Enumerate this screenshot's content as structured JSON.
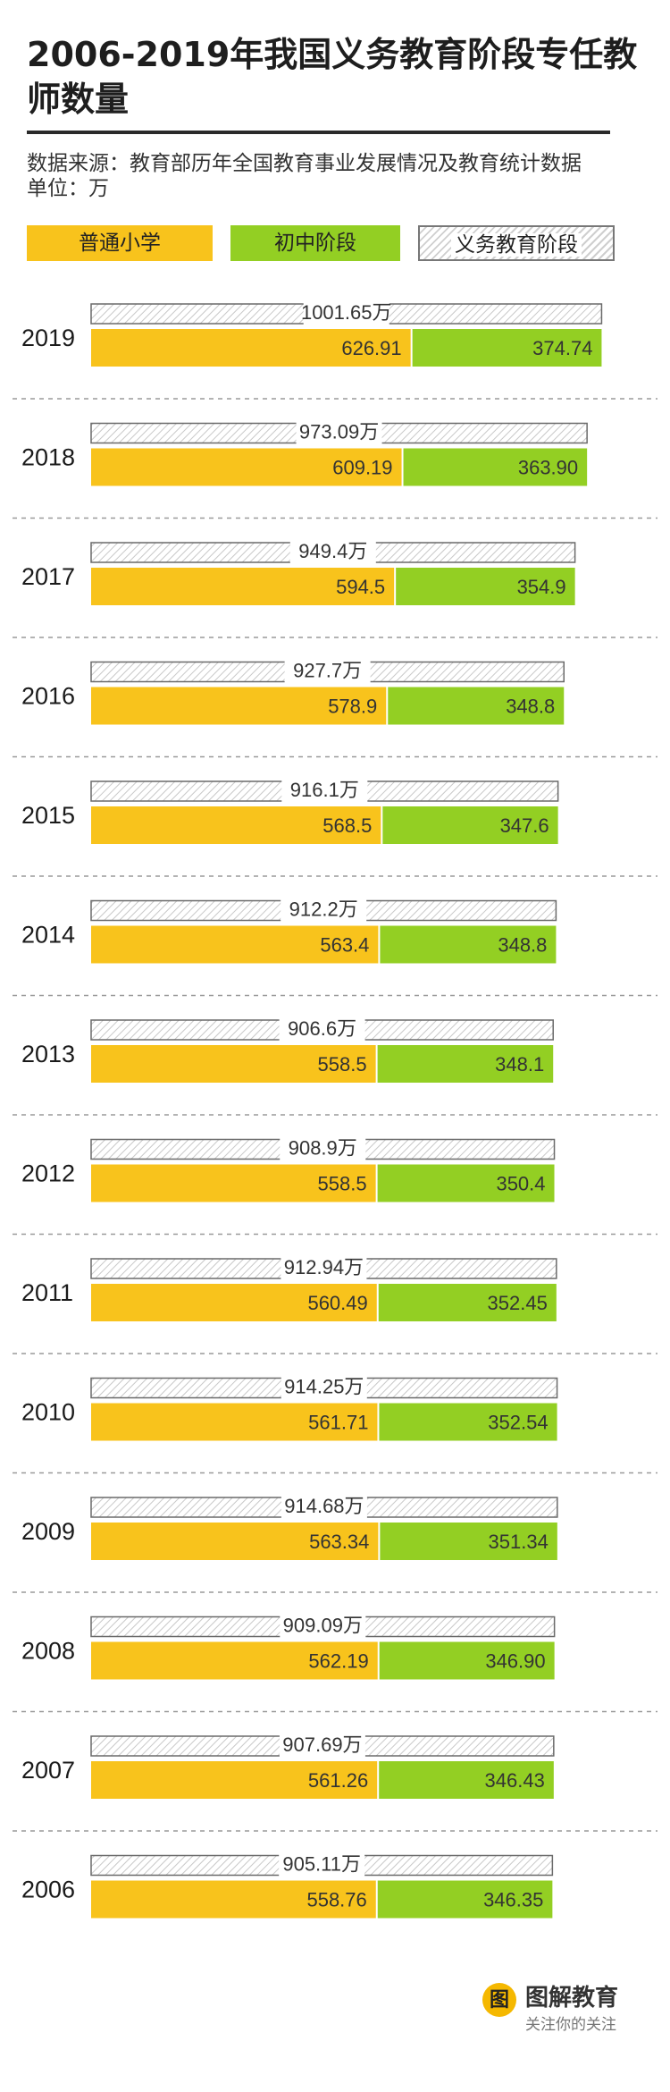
{
  "title": "2006-2019年我国义务教育阶段专任教师数量",
  "source": "数据来源：教育部历年全国教育事业发展情况及教育统计数据",
  "unit": "单位：万",
  "legend": {
    "primary": "普通小学",
    "middle": "初中阶段",
    "total": "义务教育阶段"
  },
  "colors": {
    "primary": "#f8c31c",
    "middle": "#93cf23",
    "total_hatch": "#cfcfcf"
  },
  "brand": {
    "logo_glyph": "图",
    "name": "图解教育",
    "slogan": "关注你的关注"
  },
  "chart_data": {
    "type": "bar",
    "orientation": "horizontal",
    "stacked": true,
    "categories": [
      "2019",
      "2018",
      "2017",
      "2016",
      "2015",
      "2014",
      "2013",
      "2012",
      "2011",
      "2010",
      "2009",
      "2008",
      "2007",
      "2006"
    ],
    "series": [
      {
        "name": "普通小学",
        "values": [
          "626.91",
          "609.19",
          "594.5",
          "578.9",
          "568.5",
          "563.4",
          "558.5",
          "558.5",
          "560.49",
          "561.71",
          "563.34",
          "562.19",
          "561.26",
          "558.76"
        ]
      },
      {
        "name": "初中阶段",
        "values": [
          "374.74",
          "363.90",
          "354.9",
          "348.8",
          "347.6",
          "348.8",
          "348.1",
          "350.4",
          "352.45",
          "352.54",
          "351.34",
          "346.90",
          "346.43",
          "346.35"
        ]
      },
      {
        "name": "义务教育阶段",
        "values": [
          "1001.65万",
          "973.09万",
          "949.4万",
          "927.7万",
          "916.1万",
          "912.2万",
          "906.6万",
          "908.9万",
          "912.94万",
          "914.25万",
          "914.68万",
          "909.09万",
          "907.69万",
          "905.11万"
        ]
      }
    ]
  }
}
